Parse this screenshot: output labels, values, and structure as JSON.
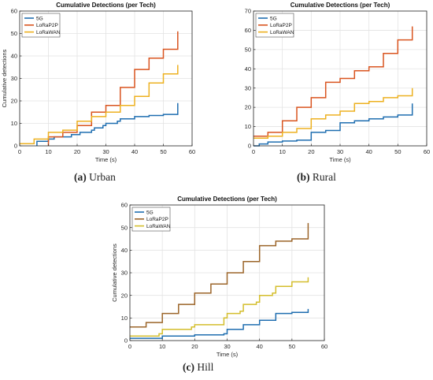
{
  "panels": [
    {
      "letter": "(a)",
      "name": "Urban"
    },
    {
      "letter": "(b)",
      "name": "Rural"
    },
    {
      "letter": "(c)",
      "name": "Hill"
    }
  ],
  "colors": {
    "5G": "#1f6eb0",
    "LoRaP2P": "#d9541f",
    "LoRaWAN": "#edb120",
    "LoRaP2P_hill": "#9b6428",
    "LoRaWAN_hill": "#d4be2c",
    "axis": "#262626",
    "grid": "#e3e3e3"
  },
  "chart_data": [
    {
      "type": "line",
      "title": "Cumulative Detections (per Tech)",
      "xlabel": "Time (s)",
      "ylabel": "Cumulative detections",
      "xlim": [
        0,
        60
      ],
      "ylim": [
        0,
        60
      ],
      "xticks": [
        0,
        10,
        20,
        30,
        40,
        50,
        60
      ],
      "yticks": [
        0,
        10,
        20,
        30,
        40,
        50,
        60
      ],
      "grid": true,
      "legend": "top-left",
      "step": true,
      "series": [
        {
          "name": "5G",
          "color": "#1f6eb0",
          "x": [
            6,
            6,
            10,
            12,
            15,
            18,
            20,
            21,
            25,
            26,
            29,
            30,
            34,
            35,
            38,
            40,
            45,
            50,
            55,
            55
          ],
          "y": [
            0,
            2,
            3,
            4,
            4,
            5,
            5,
            6,
            7,
            8,
            9,
            10,
            11,
            12,
            12,
            13,
            13.5,
            14,
            15,
            19
          ]
        },
        {
          "name": "LoRaP2P",
          "color": "#d9541f",
          "x": [
            10,
            10,
            14,
            15,
            19,
            20,
            24,
            25,
            29,
            30,
            34,
            35,
            39,
            40,
            44,
            45,
            49,
            50,
            54,
            55,
            55
          ],
          "y": [
            0,
            4,
            4,
            6,
            6,
            9,
            9,
            15,
            15,
            18,
            18,
            26,
            26,
            34,
            34,
            39,
            39,
            43,
            43,
            45,
            51
          ]
        },
        {
          "name": "LoRaWAN",
          "color": "#edb120",
          "x": [
            0,
            5,
            9,
            10,
            14,
            15,
            19,
            20,
            24,
            25,
            29,
            30,
            34,
            35,
            39,
            40,
            44,
            45,
            49,
            50,
            54,
            55,
            55
          ],
          "y": [
            1,
            3,
            3,
            6,
            6,
            7,
            7,
            11,
            11,
            13,
            13,
            15,
            15,
            18,
            18,
            22,
            22,
            28,
            28,
            32,
            32,
            34,
            36
          ]
        }
      ]
    },
    {
      "type": "line",
      "title": "Cumulative Detections (per Tech)",
      "xlabel": "Time (s)",
      "ylabel": "",
      "xlim": [
        0,
        60
      ],
      "ylim": [
        0,
        70
      ],
      "xticks": [
        0,
        10,
        20,
        30,
        40,
        50,
        60
      ],
      "yticks": [
        0,
        10,
        20,
        30,
        40,
        50,
        60,
        70
      ],
      "grid": true,
      "legend": "top-left",
      "step": true,
      "series": [
        {
          "name": "5G",
          "color": "#1f6eb0",
          "x": [
            0,
            2,
            5,
            10,
            15,
            19,
            20,
            20,
            25,
            29,
            30,
            30,
            35,
            40,
            44,
            45,
            50,
            54,
            55,
            55
          ],
          "y": [
            0,
            1,
            2,
            2.5,
            3,
            3,
            4,
            7,
            8,
            8,
            9,
            12,
            13,
            14,
            14,
            15,
            16,
            16,
            17,
            22
          ]
        },
        {
          "name": "LoRaP2P",
          "color": "#d9541f",
          "x": [
            0,
            4,
            5,
            9,
            10,
            14,
            15,
            19,
            20,
            24,
            25,
            29,
            30,
            34,
            35,
            39,
            40,
            44,
            45,
            49,
            50,
            54,
            55,
            55
          ],
          "y": [
            5,
            5,
            7,
            7,
            13,
            13,
            20,
            20,
            25,
            25,
            33,
            33,
            35,
            35,
            39,
            39,
            41,
            41,
            48,
            48,
            55,
            55,
            57,
            62
          ]
        },
        {
          "name": "LoRaWAN",
          "color": "#edb120",
          "x": [
            0,
            4,
            5,
            9,
            10,
            14,
            15,
            19,
            20,
            24,
            25,
            29,
            30,
            34,
            35,
            39,
            40,
            44,
            45,
            49,
            50,
            54,
            55,
            55
          ],
          "y": [
            4,
            4,
            5,
            5,
            7,
            7,
            9,
            9,
            14,
            14,
            16,
            16,
            18,
            18,
            22,
            22,
            23,
            23,
            25,
            25,
            26,
            26,
            28,
            30
          ]
        }
      ]
    },
    {
      "type": "line",
      "title": "Cumulative Detections (per Tech)",
      "xlabel": "Time (s)",
      "ylabel": "Cumulative detections",
      "xlim": [
        0,
        60
      ],
      "ylim": [
        0,
        60
      ],
      "xticks": [
        0,
        10,
        20,
        30,
        40,
        50,
        60
      ],
      "yticks": [
        0,
        10,
        20,
        30,
        40,
        50,
        60
      ],
      "grid": true,
      "legend": "top-left",
      "step": true,
      "series": [
        {
          "name": "5G",
          "color": "#1f6eb0",
          "x": [
            0,
            10,
            20,
            29,
            30,
            30,
            34,
            35,
            39,
            40,
            44,
            45,
            49,
            50,
            54,
            55,
            55
          ],
          "y": [
            1,
            2,
            2.5,
            3,
            3,
            5,
            5,
            7,
            7,
            9,
            9,
            12,
            12,
            12.5,
            12.5,
            13,
            14
          ]
        },
        {
          "name": "LoRaP2P",
          "color": "#9b6428",
          "x": [
            0,
            4,
            5,
            9,
            10,
            14,
            15,
            19,
            20,
            24,
            25,
            29,
            30,
            34,
            35,
            39,
            40,
            44,
            45,
            49,
            50,
            54,
            55,
            55
          ],
          "y": [
            6,
            6,
            8,
            8,
            12,
            12,
            16,
            16,
            21,
            21,
            25,
            25,
            30,
            30,
            35,
            35,
            42,
            42,
            44,
            44,
            45,
            45,
            46,
            52
          ]
        },
        {
          "name": "LoRaWAN",
          "color": "#d4be2c",
          "x": [
            0,
            9,
            10,
            19,
            20,
            29,
            30,
            34,
            35,
            39,
            40,
            44,
            45,
            49,
            50,
            54,
            55,
            55
          ],
          "y": [
            2,
            3,
            5,
            6,
            7,
            10,
            12,
            13,
            16,
            17,
            20,
            21,
            24,
            24,
            26,
            26,
            27,
            28
          ]
        }
      ]
    }
  ]
}
